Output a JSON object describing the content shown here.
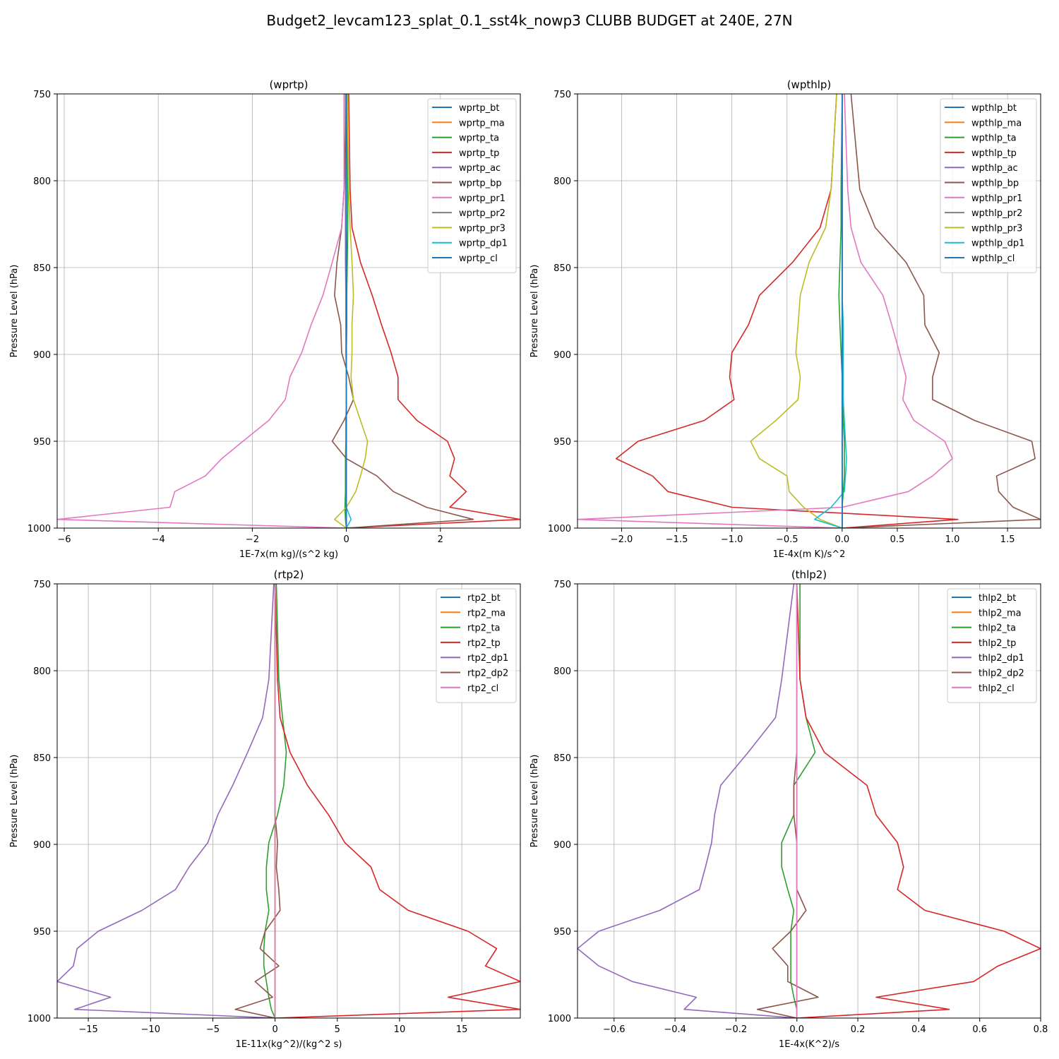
{
  "figure_title": "Budget2_levcam123_splat_0.1_sst4k_nowp3 CLUBB BUDGET at 240E, 27N",
  "colors": {
    "C0": "#1f77b4",
    "C1": "#ff7f0e",
    "C2": "#2ca02c",
    "C3": "#d62728",
    "C4": "#9467bd",
    "C5": "#8c564b",
    "C6": "#e377c2",
    "C7": "#7f7f7f",
    "C8": "#bcbd22",
    "C9": "#17becf"
  },
  "chart_data": [
    {
      "type": "line",
      "title": "(wprtp)",
      "xlabel": "1E-7x(m kg)/(s^2 kg)",
      "ylabel": "Pressure Level (hPa)",
      "xlim": [
        -6.15,
        3.7
      ],
      "ylim": [
        1000,
        750
      ],
      "xticks": [
        -6,
        -4,
        -2,
        0,
        2
      ],
      "xtick_labels": [
        "−6",
        "−4",
        "−2",
        "0",
        "2"
      ],
      "yticks": [
        750,
        800,
        850,
        900,
        950,
        1000
      ],
      "ytick_labels": [
        "750",
        "800",
        "850",
        "900",
        "950",
        "1000"
      ],
      "grid": true,
      "legend_position": "top-right",
      "levels": [
        750,
        805,
        827,
        847,
        866,
        883,
        899,
        913,
        926,
        938,
        950,
        960,
        970,
        979,
        988,
        995,
        1000
      ],
      "series": [
        {
          "name": "wprtp_bt",
          "color": "C0",
          "values": [
            0.0,
            0.0,
            0.0,
            0.0,
            0.0,
            0.0,
            0.0,
            0.0,
            0.0,
            0.0,
            0.0,
            0.0,
            0.0,
            0.0,
            0.0,
            0.0,
            0.0
          ]
        },
        {
          "name": "wprtp_ma",
          "color": "C1",
          "values": [
            0.0,
            0.0,
            0.0,
            0.0,
            0.0,
            0.0,
            0.0,
            0.0,
            0.0,
            0.0,
            0.0,
            0.0,
            0.0,
            0.0,
            0.0,
            0.0,
            0.0
          ]
        },
        {
          "name": "wprtp_ta",
          "color": "C2",
          "values": [
            0.02,
            0.03,
            0.03,
            0.02,
            0.01,
            0.01,
            0.0,
            0.0,
            0.0,
            -0.01,
            -0.01,
            -0.02,
            -0.02,
            -0.02,
            -0.03,
            -0.02,
            0.0
          ]
        },
        {
          "name": "wprtp_tp",
          "color": "C3",
          "values": [
            0.05,
            0.08,
            0.12,
            0.3,
            0.55,
            0.75,
            0.95,
            1.1,
            1.1,
            1.5,
            2.15,
            2.3,
            2.2,
            2.55,
            2.2,
            3.7,
            0.0
          ]
        },
        {
          "name": "wprtp_ac",
          "color": "C4",
          "values": [
            -0.02,
            -0.02,
            -0.02,
            -0.02,
            -0.01,
            -0.01,
            -0.01,
            0.0,
            0.0,
            0.0,
            0.0,
            0.0,
            0.0,
            0.0,
            0.0,
            0.0,
            0.0
          ]
        },
        {
          "name": "wprtp_bp",
          "color": "C5",
          "values": [
            0.0,
            -0.05,
            -0.1,
            -0.2,
            -0.25,
            -0.12,
            -0.1,
            0.05,
            0.15,
            -0.05,
            -0.3,
            0.0,
            0.65,
            1.0,
            1.7,
            2.7,
            0.0
          ]
        },
        {
          "name": "wprtp_pr1",
          "color": "C6",
          "values": [
            -0.05,
            -0.05,
            -0.1,
            -0.3,
            -0.5,
            -0.75,
            -0.95,
            -1.2,
            -1.3,
            -1.65,
            -2.2,
            -2.65,
            -3.0,
            -3.65,
            -3.75,
            -6.15,
            0.0
          ]
        },
        {
          "name": "wprtp_pr2",
          "color": "C7",
          "values": [
            0.0,
            0.0,
            0.0,
            0.0,
            0.0,
            0.0,
            0.0,
            0.0,
            0.0,
            0.0,
            0.0,
            0.0,
            0.0,
            0.0,
            0.0,
            0.0,
            0.0
          ]
        },
        {
          "name": "wprtp_pr3",
          "color": "C8",
          "values": [
            0.02,
            0.05,
            0.08,
            0.12,
            0.15,
            0.12,
            0.12,
            0.1,
            0.15,
            0.3,
            0.45,
            0.4,
            0.3,
            0.2,
            0.0,
            -0.25,
            0.0
          ]
        },
        {
          "name": "wprtp_dp1",
          "color": "C9",
          "values": [
            0.0,
            0.0,
            0.0,
            0.0,
            0.0,
            0.0,
            0.0,
            0.0,
            0.0,
            0.0,
            0.0,
            0.0,
            0.0,
            0.0,
            0.0,
            0.1,
            0.0
          ]
        },
        {
          "name": "wprtp_cl",
          "color": "C0",
          "values": [
            0.0,
            0.0,
            0.0,
            0.0,
            0.0,
            0.0,
            0.0,
            0.0,
            0.0,
            0.0,
            0.0,
            0.0,
            0.0,
            0.0,
            0.0,
            0.0,
            0.0
          ]
        }
      ]
    },
    {
      "type": "line",
      "title": "(wpthlp)",
      "xlabel": "1E-4x(m K)/s^2",
      "ylabel": "Pressure Level (hPa)",
      "xlim": [
        -2.4,
        1.8
      ],
      "ylim": [
        1000,
        750
      ],
      "xticks": [
        -2.0,
        -1.5,
        -1.0,
        -0.5,
        0.0,
        0.5,
        1.0,
        1.5
      ],
      "xtick_labels": [
        "−2.0",
        "−1.5",
        "−1.0",
        "−0.5",
        "0.0",
        "0.5",
        "1.0",
        "1.5"
      ],
      "yticks": [
        750,
        800,
        850,
        900,
        950,
        1000
      ],
      "ytick_labels": [
        "750",
        "800",
        "850",
        "900",
        "950",
        "1000"
      ],
      "grid": true,
      "legend_position": "top-right",
      "levels": [
        750,
        805,
        827,
        847,
        866,
        883,
        899,
        913,
        926,
        938,
        950,
        960,
        970,
        979,
        988,
        995,
        1000
      ],
      "series": [
        {
          "name": "wpthlp_bt",
          "color": "C0",
          "values": [
            0.0,
            0.0,
            0.0,
            0.0,
            0.0,
            0.0,
            0.0,
            0.0,
            0.0,
            0.0,
            0.0,
            0.0,
            0.0,
            0.0,
            0.0,
            0.0,
            0.0
          ]
        },
        {
          "name": "wpthlp_ma",
          "color": "C1",
          "values": [
            0.0,
            0.0,
            0.0,
            0.0,
            0.0,
            0.0,
            0.0,
            0.0,
            0.0,
            0.0,
            0.0,
            0.0,
            0.0,
            0.0,
            0.0,
            0.0,
            0.0
          ]
        },
        {
          "name": "wpthlp_ta",
          "color": "C2",
          "values": [
            0.0,
            -0.01,
            -0.01,
            -0.02,
            -0.03,
            -0.02,
            -0.01,
            0.0,
            0.01,
            0.01,
            0.02,
            0.02,
            0.02,
            0.01,
            0.0,
            0.0,
            0.0
          ]
        },
        {
          "name": "wpthlp_tp",
          "color": "C3",
          "values": [
            -0.05,
            -0.1,
            -0.2,
            -0.45,
            -0.75,
            -0.85,
            -1.0,
            -1.02,
            -0.98,
            -1.25,
            -1.85,
            -2.05,
            -1.72,
            -1.58,
            -1.0,
            1.05,
            0.0
          ]
        },
        {
          "name": "wpthlp_ac",
          "color": "C4",
          "values": [
            0.0,
            0.0,
            0.0,
            0.0,
            0.0,
            0.0,
            0.0,
            0.0,
            0.0,
            0.0,
            0.0,
            0.0,
            0.0,
            0.0,
            0.0,
            0.0,
            0.0
          ]
        },
        {
          "name": "wpthlp_bp",
          "color": "C5",
          "values": [
            0.08,
            0.16,
            0.3,
            0.58,
            0.74,
            0.75,
            0.88,
            0.82,
            0.82,
            1.2,
            1.72,
            1.75,
            1.4,
            1.42,
            1.55,
            1.8,
            0.0
          ]
        },
        {
          "name": "wpthlp_pr1",
          "color": "C6",
          "values": [
            0.02,
            0.05,
            0.08,
            0.17,
            0.37,
            0.45,
            0.52,
            0.58,
            0.55,
            0.65,
            0.93,
            1.0,
            0.82,
            0.6,
            0.0,
            -2.4,
            0.0
          ]
        },
        {
          "name": "wpthlp_pr2",
          "color": "C7",
          "values": [
            0.0,
            0.0,
            0.0,
            0.0,
            0.0,
            0.0,
            0.0,
            0.0,
            0.0,
            0.0,
            0.0,
            0.0,
            0.0,
            0.0,
            0.0,
            0.0,
            0.0
          ]
        },
        {
          "name": "wpthlp_pr3",
          "color": "C8",
          "values": [
            -0.05,
            -0.1,
            -0.15,
            -0.3,
            -0.38,
            -0.4,
            -0.42,
            -0.38,
            -0.4,
            -0.6,
            -0.83,
            -0.75,
            -0.5,
            -0.48,
            -0.35,
            -0.2,
            0.0
          ]
        },
        {
          "name": "wpthlp_dp1",
          "color": "C9",
          "values": [
            0.0,
            0.0,
            0.0,
            0.0,
            0.0,
            0.01,
            0.01,
            0.01,
            0.01,
            0.02,
            0.03,
            0.04,
            0.03,
            0.02,
            -0.1,
            -0.25,
            0.0
          ]
        },
        {
          "name": "wpthlp_cl",
          "color": "C0",
          "values": [
            0.0,
            0.0,
            0.0,
            0.0,
            0.0,
            0.0,
            0.0,
            0.0,
            0.0,
            0.0,
            0.0,
            0.0,
            0.0,
            0.0,
            0.0,
            0.0,
            0.0
          ]
        }
      ]
    },
    {
      "type": "line",
      "title": "(rtp2)",
      "xlabel": "1E-11x(kg^2)/(kg^2 s)",
      "ylabel": "Pressure Level (hPa)",
      "xlim": [
        -17.5,
        19.7
      ],
      "ylim": [
        1000,
        750
      ],
      "xticks": [
        -15,
        -10,
        -5,
        0,
        5,
        10,
        15
      ],
      "xtick_labels": [
        "−15",
        "−10",
        "−5",
        "0",
        "5",
        "10",
        "15"
      ],
      "yticks": [
        750,
        800,
        850,
        900,
        950,
        1000
      ],
      "ytick_labels": [
        "750",
        "800",
        "850",
        "900",
        "950",
        "1000"
      ],
      "grid": true,
      "legend_position": "top-right",
      "levels": [
        750,
        805,
        827,
        847,
        866,
        883,
        899,
        913,
        926,
        938,
        950,
        960,
        970,
        979,
        988,
        995,
        1000
      ],
      "series": [
        {
          "name": "rtp2_bt",
          "color": "C0",
          "values": [
            0.0,
            0.0,
            0.0,
            0.0,
            0.0,
            0.0,
            0.0,
            0.0,
            0.0,
            0.0,
            0.0,
            0.0,
            0.0,
            0.0,
            0.0,
            0.0,
            0.0
          ]
        },
        {
          "name": "rtp2_ma",
          "color": "C1",
          "values": [
            0.0,
            0.0,
            0.0,
            0.0,
            0.0,
            0.0,
            0.0,
            0.0,
            0.0,
            0.0,
            0.0,
            0.0,
            0.0,
            0.0,
            0.0,
            0.0,
            0.0
          ]
        },
        {
          "name": "rtp2_ta",
          "color": "C2",
          "values": [
            0.1,
            0.3,
            0.6,
            0.9,
            0.7,
            0.2,
            -0.5,
            -0.7,
            -0.7,
            -0.5,
            -0.8,
            -0.9,
            -0.9,
            -0.7,
            -0.5,
            -0.3,
            0.0
          ]
        },
        {
          "name": "rtp2_tp",
          "color": "C3",
          "values": [
            0.0,
            0.2,
            0.4,
            1.2,
            2.6,
            4.3,
            5.6,
            7.7,
            8.4,
            10.7,
            15.5,
            17.8,
            16.9,
            19.7,
            13.9,
            19.7,
            0.0
          ]
        },
        {
          "name": "rtp2_dp1",
          "color": "C4",
          "values": [
            -0.1,
            -0.5,
            -1.0,
            -2.2,
            -3.4,
            -4.6,
            -5.4,
            -6.9,
            -8.0,
            -10.7,
            -14.2,
            -15.9,
            -16.2,
            -17.5,
            -13.2,
            -16.1,
            0.0
          ]
        },
        {
          "name": "rtp2_dp2",
          "color": "C5",
          "values": [
            0.0,
            0.0,
            0.0,
            0.0,
            0.0,
            0.0,
            0.2,
            0.1,
            0.3,
            0.4,
            -0.8,
            -1.2,
            0.3,
            -1.6,
            -0.2,
            -3.2,
            0.0
          ]
        },
        {
          "name": "rtp2_cl",
          "color": "C6",
          "values": [
            0.0,
            0.0,
            0.0,
            0.0,
            0.0,
            0.0,
            0.0,
            0.0,
            0.0,
            0.0,
            0.0,
            0.0,
            0.0,
            0.0,
            0.0,
            0.0,
            0.0
          ]
        }
      ]
    },
    {
      "type": "line",
      "title": "(thlp2)",
      "xlabel": "1E-4x(K^2)/s",
      "ylabel": "Pressure Level (hPa)",
      "xlim": [
        -0.72,
        0.8
      ],
      "ylim": [
        1000,
        750
      ],
      "xticks": [
        -0.6,
        -0.4,
        -0.2,
        0.0,
        0.2,
        0.4,
        0.6,
        0.8
      ],
      "xtick_labels": [
        "−0.6",
        "−0.4",
        "−0.2",
        "0.0",
        "0.2",
        "0.4",
        "0.6",
        "0.8"
      ],
      "yticks": [
        750,
        800,
        850,
        900,
        950,
        1000
      ],
      "ytick_labels": [
        "750",
        "800",
        "850",
        "900",
        "950",
        "1000"
      ],
      "grid": true,
      "legend_position": "top-right",
      "levels": [
        750,
        805,
        827,
        847,
        866,
        883,
        899,
        913,
        926,
        938,
        950,
        960,
        970,
        979,
        988,
        995,
        1000
      ],
      "series": [
        {
          "name": "thlp2_bt",
          "color": "C0",
          "values": [
            0.0,
            0.0,
            0.0,
            0.0,
            0.0,
            0.0,
            0.0,
            0.0,
            0.0,
            0.0,
            0.0,
            0.0,
            0.0,
            0.0,
            0.0,
            0.0,
            0.0
          ]
        },
        {
          "name": "thlp2_ma",
          "color": "C1",
          "values": [
            0.0,
            0.0,
            0.0,
            0.0,
            0.0,
            0.0,
            0.0,
            0.0,
            0.0,
            0.0,
            0.0,
            0.0,
            0.0,
            0.0,
            0.0,
            0.0,
            0.0
          ]
        },
        {
          "name": "thlp2_ta",
          "color": "C2",
          "values": [
            0.01,
            0.01,
            0.03,
            0.06,
            -0.01,
            -0.01,
            -0.05,
            -0.05,
            -0.03,
            -0.01,
            -0.02,
            -0.02,
            -0.02,
            -0.02,
            -0.01,
            0.0,
            0.0
          ]
        },
        {
          "name": "thlp2_tp",
          "color": "C3",
          "values": [
            0.0,
            0.01,
            0.03,
            0.09,
            0.23,
            0.26,
            0.33,
            0.35,
            0.33,
            0.42,
            0.68,
            0.8,
            0.66,
            0.58,
            0.26,
            0.5,
            0.0
          ]
        },
        {
          "name": "thlp2_dp1",
          "color": "C4",
          "values": [
            -0.01,
            -0.05,
            -0.07,
            -0.16,
            -0.25,
            -0.27,
            -0.28,
            -0.3,
            -0.32,
            -0.45,
            -0.65,
            -0.72,
            -0.65,
            -0.54,
            -0.33,
            -0.37,
            0.0
          ]
        },
        {
          "name": "thlp2_dp2",
          "color": "C5",
          "values": [
            0.0,
            0.0,
            0.0,
            0.0,
            -0.01,
            -0.01,
            0.0,
            0.0,
            0.0,
            0.03,
            -0.02,
            -0.08,
            -0.03,
            -0.03,
            0.07,
            -0.13,
            0.0
          ]
        },
        {
          "name": "thlp2_cl",
          "color": "C6",
          "values": [
            0.0,
            0.0,
            0.0,
            0.0,
            0.0,
            0.0,
            0.0,
            0.0,
            0.0,
            0.0,
            0.0,
            0.0,
            0.0,
            0.0,
            0.0,
            0.0,
            0.0
          ]
        }
      ]
    }
  ]
}
